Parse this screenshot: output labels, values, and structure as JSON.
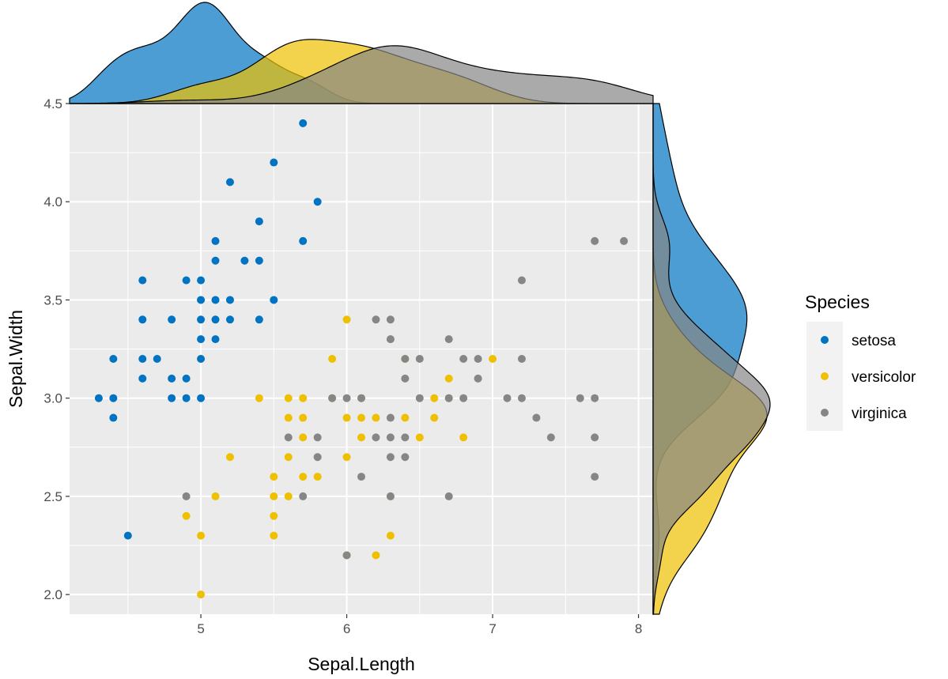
{
  "chart_data": {
    "type": "scatter",
    "xlabel": "Sepal.Length",
    "ylabel": "Sepal.Width",
    "xlim": [
      4.1,
      8.1
    ],
    "ylim": [
      1.9,
      4.5
    ],
    "x_ticks": [
      "5",
      "6",
      "7",
      "8"
    ],
    "y_ticks": [
      "2.0",
      "2.5",
      "3.0",
      "3.5",
      "4.0",
      "4.5"
    ],
    "grid": true,
    "marginal_plots": "density",
    "legend": {
      "title": "Species",
      "position": "right"
    },
    "series": [
      {
        "name": "setosa",
        "color": "#0073C2",
        "points": [
          [
            4.3,
            3.0
          ],
          [
            4.4,
            2.9
          ],
          [
            4.4,
            3.0
          ],
          [
            4.4,
            3.2
          ],
          [
            4.5,
            2.3
          ],
          [
            4.6,
            3.1
          ],
          [
            4.6,
            3.2
          ],
          [
            4.6,
            3.4
          ],
          [
            4.6,
            3.6
          ],
          [
            4.7,
            3.2
          ],
          [
            4.8,
            3.0
          ],
          [
            4.8,
            3.1
          ],
          [
            4.8,
            3.4
          ],
          [
            4.9,
            3.0
          ],
          [
            4.9,
            3.1
          ],
          [
            4.9,
            3.6
          ],
          [
            5.0,
            3.0
          ],
          [
            5.0,
            3.2
          ],
          [
            5.0,
            3.3
          ],
          [
            5.0,
            3.4
          ],
          [
            5.0,
            3.5
          ],
          [
            5.0,
            3.6
          ],
          [
            5.1,
            3.3
          ],
          [
            5.1,
            3.4
          ],
          [
            5.1,
            3.5
          ],
          [
            5.1,
            3.7
          ],
          [
            5.1,
            3.8
          ],
          [
            5.2,
            3.4
          ],
          [
            5.2,
            3.5
          ],
          [
            5.2,
            4.1
          ],
          [
            5.3,
            3.7
          ],
          [
            5.4,
            3.4
          ],
          [
            5.4,
            3.7
          ],
          [
            5.4,
            3.9
          ],
          [
            5.5,
            3.5
          ],
          [
            5.5,
            4.2
          ],
          [
            5.7,
            3.8
          ],
          [
            5.7,
            4.4
          ],
          [
            5.8,
            4.0
          ]
        ]
      },
      {
        "name": "versicolor",
        "color": "#EFC000",
        "points": [
          [
            4.9,
            2.4
          ],
          [
            5.0,
            2.0
          ],
          [
            5.0,
            2.3
          ],
          [
            5.1,
            2.5
          ],
          [
            5.2,
            2.7
          ],
          [
            5.4,
            3.0
          ],
          [
            5.5,
            2.3
          ],
          [
            5.5,
            2.4
          ],
          [
            5.5,
            2.5
          ],
          [
            5.5,
            2.6
          ],
          [
            5.6,
            2.5
          ],
          [
            5.6,
            2.7
          ],
          [
            5.6,
            2.9
          ],
          [
            5.6,
            3.0
          ],
          [
            5.7,
            2.6
          ],
          [
            5.7,
            2.8
          ],
          [
            5.7,
            2.9
          ],
          [
            5.7,
            3.0
          ],
          [
            5.8,
            2.6
          ],
          [
            5.8,
            2.7
          ],
          [
            5.9,
            3.0
          ],
          [
            5.9,
            3.2
          ],
          [
            6.0,
            2.2
          ],
          [
            6.0,
            2.7
          ],
          [
            6.0,
            2.9
          ],
          [
            6.0,
            3.4
          ],
          [
            6.1,
            2.8
          ],
          [
            6.1,
            2.9
          ],
          [
            6.1,
            3.0
          ],
          [
            6.2,
            2.2
          ],
          [
            6.2,
            2.9
          ],
          [
            6.3,
            2.3
          ],
          [
            6.3,
            2.5
          ],
          [
            6.3,
            3.3
          ],
          [
            6.4,
            2.9
          ],
          [
            6.4,
            3.2
          ],
          [
            6.5,
            2.8
          ],
          [
            6.6,
            2.9
          ],
          [
            6.6,
            3.0
          ],
          [
            6.7,
            3.0
          ],
          [
            6.7,
            3.1
          ],
          [
            6.8,
            2.8
          ],
          [
            6.9,
            3.1
          ],
          [
            7.0,
            3.2
          ]
        ]
      },
      {
        "name": "virginica",
        "color": "#868686",
        "points": [
          [
            4.9,
            2.5
          ],
          [
            5.6,
            2.8
          ],
          [
            5.7,
            2.5
          ],
          [
            5.8,
            2.7
          ],
          [
            5.8,
            2.8
          ],
          [
            5.9,
            3.0
          ],
          [
            6.0,
            2.2
          ],
          [
            6.0,
            3.0
          ],
          [
            6.1,
            2.6
          ],
          [
            6.1,
            3.0
          ],
          [
            6.2,
            2.8
          ],
          [
            6.2,
            3.4
          ],
          [
            6.3,
            2.5
          ],
          [
            6.3,
            2.7
          ],
          [
            6.3,
            2.8
          ],
          [
            6.3,
            2.9
          ],
          [
            6.3,
            3.3
          ],
          [
            6.3,
            3.4
          ],
          [
            6.4,
            2.7
          ],
          [
            6.4,
            2.8
          ],
          [
            6.4,
            3.1
          ],
          [
            6.4,
            3.2
          ],
          [
            6.5,
            3.0
          ],
          [
            6.5,
            3.2
          ],
          [
            6.7,
            2.5
          ],
          [
            6.7,
            3.0
          ],
          [
            6.7,
            3.3
          ],
          [
            6.8,
            3.0
          ],
          [
            6.8,
            3.2
          ],
          [
            6.9,
            3.1
          ],
          [
            6.9,
            3.2
          ],
          [
            7.1,
            3.0
          ],
          [
            7.2,
            3.0
          ],
          [
            7.2,
            3.2
          ],
          [
            7.2,
            3.6
          ],
          [
            7.3,
            2.9
          ],
          [
            7.4,
            2.8
          ],
          [
            7.6,
            3.0
          ],
          [
            7.7,
            2.6
          ],
          [
            7.7,
            2.8
          ],
          [
            7.7,
            3.0
          ],
          [
            7.7,
            3.8
          ],
          [
            7.9,
            3.8
          ]
        ]
      }
    ]
  }
}
